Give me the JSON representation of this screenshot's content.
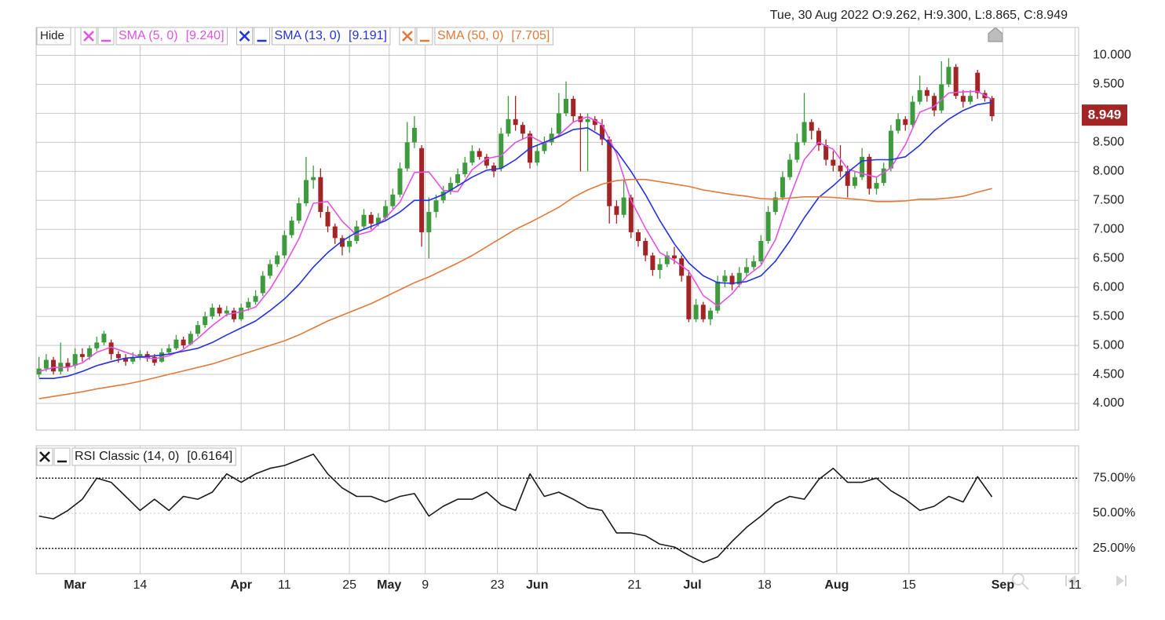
{
  "chart_data": [
    {
      "type": "candlestick",
      "title": "Tue, 30 Aug 2022  O:9.262, H:9.300, L:8.865, C:8.949",
      "hide_label": "Hide",
      "candle_colors": {
        "up": "#3d9b3d",
        "down": "#a32424"
      },
      "candles": [
        [
          4.5,
          4.8,
          4.45,
          4.6
        ],
        [
          4.6,
          4.85,
          4.55,
          4.75
        ],
        [
          4.75,
          4.8,
          4.5,
          4.55
        ],
        [
          4.55,
          5.05,
          4.5,
          4.7
        ],
        [
          4.7,
          4.78,
          4.55,
          4.62
        ],
        [
          4.65,
          4.95,
          4.6,
          4.85
        ],
        [
          4.85,
          4.95,
          4.72,
          4.8
        ],
        [
          4.8,
          5.0,
          4.75,
          4.95
        ],
        [
          4.95,
          5.15,
          4.9,
          5.05
        ],
        [
          5.05,
          5.25,
          5.0,
          5.2
        ],
        [
          5.05,
          5.1,
          4.75,
          4.85
        ],
        [
          4.85,
          4.9,
          4.7,
          4.78
        ],
        [
          4.78,
          4.85,
          4.65,
          4.72
        ],
        [
          4.72,
          4.88,
          4.68,
          4.8
        ],
        [
          4.8,
          4.92,
          4.75,
          4.85
        ],
        [
          4.85,
          4.9,
          4.72,
          4.78
        ],
        [
          4.8,
          4.85,
          4.65,
          4.7
        ],
        [
          4.72,
          4.95,
          4.7,
          4.88
        ],
        [
          4.88,
          5.02,
          4.85,
          4.95
        ],
        [
          4.95,
          5.18,
          4.92,
          5.1
        ],
        [
          5.1,
          5.15,
          4.95,
          5.0
        ],
        [
          5.02,
          5.25,
          5.0,
          5.2
        ],
        [
          5.2,
          5.42,
          5.15,
          5.35
        ],
        [
          5.35,
          5.58,
          5.3,
          5.5
        ],
        [
          5.5,
          5.72,
          5.45,
          5.65
        ],
        [
          5.65,
          5.7,
          5.5,
          5.55
        ],
        [
          5.55,
          5.68,
          5.5,
          5.6
        ],
        [
          5.6,
          5.65,
          5.4,
          5.45
        ],
        [
          5.45,
          5.72,
          5.42,
          5.65
        ],
        [
          5.65,
          5.82,
          5.6,
          5.75
        ],
        [
          5.75,
          5.95,
          5.7,
          5.85
        ],
        [
          5.9,
          6.28,
          5.85,
          6.2
        ],
        [
          6.2,
          6.48,
          6.15,
          6.4
        ],
        [
          6.4,
          6.62,
          6.35,
          6.55
        ],
        [
          6.55,
          6.98,
          6.5,
          6.9
        ],
        [
          6.9,
          7.22,
          6.85,
          7.15
        ],
        [
          7.15,
          7.55,
          7.1,
          7.45
        ],
        [
          7.45,
          8.25,
          7.4,
          7.85
        ],
        [
          7.85,
          8.1,
          7.7,
          7.9
        ],
        [
          7.9,
          8.05,
          7.2,
          7.3
        ],
        [
          7.3,
          7.4,
          6.95,
          7.05
        ],
        [
          7.05,
          7.1,
          6.75,
          6.85
        ],
        [
          6.85,
          6.9,
          6.55,
          6.7
        ],
        [
          6.7,
          6.9,
          6.6,
          6.8
        ],
        [
          6.8,
          7.15,
          6.75,
          7.05
        ],
        [
          7.05,
          7.35,
          7.0,
          7.25
        ],
        [
          7.25,
          7.3,
          7.0,
          7.1
        ],
        [
          7.1,
          7.28,
          7.05,
          7.2
        ],
        [
          7.2,
          7.5,
          7.15,
          7.4
        ],
        [
          7.4,
          7.7,
          7.35,
          7.6
        ],
        [
          7.6,
          8.15,
          7.55,
          8.05
        ],
        [
          8.05,
          8.85,
          8.0,
          8.5
        ],
        [
          8.5,
          8.95,
          8.4,
          8.75
        ],
        [
          8.4,
          8.45,
          6.7,
          6.95
        ],
        [
          6.95,
          7.55,
          6.5,
          7.3
        ],
        [
          7.3,
          7.6,
          7.2,
          7.5
        ],
        [
          7.5,
          7.75,
          7.45,
          7.65
        ],
        [
          7.65,
          7.9,
          7.6,
          7.8
        ],
        [
          7.8,
          8.05,
          7.75,
          7.95
        ],
        [
          7.95,
          8.25,
          7.9,
          8.15
        ],
        [
          8.15,
          8.45,
          8.1,
          8.35
        ],
        [
          8.35,
          8.4,
          8.2,
          8.25
        ],
        [
          8.25,
          8.3,
          8.05,
          8.1
        ],
        [
          8.1,
          8.15,
          7.9,
          8.0
        ],
        [
          8.05,
          8.75,
          8.0,
          8.65
        ],
        [
          8.65,
          9.3,
          8.6,
          8.9
        ],
        [
          8.9,
          9.3,
          8.7,
          8.8
        ],
        [
          8.8,
          8.85,
          8.55,
          8.65
        ],
        [
          8.65,
          8.7,
          8.05,
          8.15
        ],
        [
          8.15,
          8.45,
          8.1,
          8.35
        ],
        [
          8.35,
          8.6,
          8.3,
          8.5
        ],
        [
          8.5,
          8.75,
          8.45,
          8.65
        ],
        [
          8.65,
          9.35,
          8.6,
          9.0
        ],
        [
          9.0,
          9.55,
          8.95,
          9.25
        ],
        [
          9.25,
          9.3,
          8.85,
          8.95
        ],
        [
          8.95,
          9.0,
          8.0,
          8.85
        ],
        [
          8.85,
          9.0,
          8.0,
          8.9
        ],
        [
          8.9,
          8.95,
          8.7,
          8.8
        ],
        [
          8.8,
          8.9,
          8.45,
          8.55
        ],
        [
          8.55,
          8.6,
          7.1,
          7.4
        ],
        [
          7.4,
          7.5,
          7.1,
          7.25
        ],
        [
          7.25,
          7.85,
          7.2,
          7.55
        ],
        [
          7.55,
          7.6,
          6.85,
          6.95
        ],
        [
          6.95,
          7.0,
          6.7,
          6.8
        ],
        [
          6.8,
          6.85,
          6.45,
          6.55
        ],
        [
          6.55,
          6.6,
          6.2,
          6.3
        ],
        [
          6.3,
          6.5,
          6.15,
          6.4
        ],
        [
          6.4,
          6.62,
          6.35,
          6.55
        ],
        [
          6.55,
          6.7,
          6.4,
          6.5
        ],
        [
          6.5,
          6.55,
          6.1,
          6.2
        ],
        [
          6.2,
          6.3,
          5.4,
          5.45
        ],
        [
          5.45,
          5.8,
          5.4,
          5.7
        ],
        [
          5.7,
          5.75,
          5.4,
          5.45
        ],
        [
          5.45,
          5.65,
          5.35,
          5.6
        ],
        [
          5.6,
          6.2,
          5.55,
          6.1
        ],
        [
          6.1,
          6.3,
          6.0,
          6.2
        ],
        [
          6.2,
          6.25,
          5.95,
          6.05
        ],
        [
          6.05,
          6.35,
          6.0,
          6.25
        ],
        [
          6.25,
          6.5,
          6.2,
          6.35
        ],
        [
          6.35,
          6.55,
          6.3,
          6.45
        ],
        [
          6.45,
          6.9,
          6.4,
          6.8
        ],
        [
          6.8,
          7.4,
          6.75,
          7.3
        ],
        [
          7.3,
          7.65,
          7.25,
          7.55
        ],
        [
          7.55,
          8.0,
          7.5,
          7.9
        ],
        [
          7.9,
          8.3,
          7.85,
          8.2
        ],
        [
          8.2,
          8.65,
          8.15,
          8.5
        ],
        [
          8.5,
          9.35,
          8.45,
          8.85
        ],
        [
          8.85,
          8.9,
          8.55,
          8.7
        ],
        [
          8.7,
          8.75,
          8.35,
          8.45
        ],
        [
          8.45,
          8.55,
          8.1,
          8.2
        ],
        [
          8.2,
          8.35,
          8.0,
          8.1
        ],
        [
          8.1,
          8.45,
          7.9,
          8.0
        ],
        [
          8.0,
          8.1,
          7.55,
          7.75
        ],
        [
          7.75,
          8.0,
          7.7,
          7.9
        ],
        [
          7.9,
          8.4,
          7.85,
          8.25
        ],
        [
          8.25,
          8.3,
          7.6,
          7.7
        ],
        [
          7.7,
          7.9,
          7.6,
          7.8
        ],
        [
          7.8,
          8.15,
          7.75,
          8.05
        ],
        [
          8.05,
          8.8,
          8.0,
          8.7
        ],
        [
          8.7,
          9.0,
          8.65,
          8.9
        ],
        [
          8.9,
          8.95,
          8.7,
          8.8
        ],
        [
          8.8,
          9.3,
          8.75,
          9.2
        ],
        [
          9.2,
          9.65,
          9.15,
          9.4
        ],
        [
          9.4,
          9.45,
          9.2,
          9.3
        ],
        [
          9.3,
          9.35,
          8.95,
          9.05
        ],
        [
          9.05,
          9.9,
          9.0,
          9.5
        ],
        [
          9.5,
          9.95,
          9.45,
          9.8
        ],
        [
          9.8,
          9.85,
          9.25,
          9.3
        ],
        [
          9.3,
          9.4,
          9.1,
          9.2
        ],
        [
          9.2,
          9.4,
          9.15,
          9.3
        ],
        [
          9.7,
          9.75,
          9.25,
          9.35
        ],
        [
          9.35,
          9.4,
          9.2,
          9.26
        ],
        [
          9.262,
          9.3,
          8.865,
          8.949
        ]
      ],
      "line_x": [
        0,
        2,
        4,
        6,
        8,
        10,
        12,
        14,
        16,
        18,
        20,
        22,
        24,
        26,
        28,
        30,
        32,
        34,
        36,
        38,
        40,
        42,
        44,
        46,
        48,
        50,
        52,
        54,
        56,
        58,
        60,
        62,
        64,
        66,
        68,
        70,
        72,
        74,
        76,
        78,
        80,
        82,
        84,
        86,
        88,
        90,
        92,
        94,
        96,
        98,
        100,
        102,
        104,
        106,
        108,
        110,
        112,
        114,
        116,
        118,
        120,
        122,
        124,
        126,
        128,
        130,
        132
      ],
      "series": [
        {
          "name": "SMA (5, 0)",
          "legend_value": "[9.240]",
          "color": "#e353e3",
          "values": [
            4.55,
            4.62,
            4.62,
            4.7,
            4.88,
            4.97,
            4.88,
            4.8,
            4.77,
            4.82,
            4.93,
            5.12,
            5.34,
            5.53,
            5.58,
            5.66,
            5.97,
            6.38,
            6.84,
            7.45,
            7.48,
            7.14,
            6.9,
            6.97,
            7.2,
            7.47,
            7.98,
            7.99,
            7.67,
            7.65,
            8.03,
            8.22,
            8.27,
            8.5,
            8.61,
            8.48,
            8.62,
            8.85,
            8.94,
            8.81,
            8.3,
            7.5,
            7.02,
            6.6,
            6.46,
            6.28,
            5.86,
            5.68,
            5.89,
            6.19,
            6.38,
            6.82,
            7.55,
            8.2,
            8.5,
            8.38,
            8.04,
            7.96,
            7.9,
            8.06,
            8.46,
            9.02,
            9.12,
            9.35,
            9.37,
            9.38,
            9.24
          ]
        },
        {
          "name": "SMA (13, 0)",
          "legend_value": "[9.191]",
          "color": "#2332e0",
          "values": [
            4.43,
            4.43,
            4.47,
            4.55,
            4.65,
            4.72,
            4.78,
            4.8,
            4.82,
            4.85,
            4.9,
            4.95,
            5.05,
            5.18,
            5.3,
            5.42,
            5.6,
            5.8,
            6.05,
            6.35,
            6.6,
            6.8,
            6.95,
            7.05,
            7.15,
            7.3,
            7.5,
            7.5,
            7.6,
            7.75,
            7.9,
            8.02,
            8.05,
            8.2,
            8.4,
            8.5,
            8.6,
            8.72,
            8.75,
            8.6,
            8.35,
            8.0,
            7.6,
            7.15,
            6.75,
            6.42,
            6.2,
            6.08,
            6.07,
            6.1,
            6.2,
            6.45,
            6.8,
            7.2,
            7.55,
            7.75,
            7.98,
            8.18,
            8.2,
            8.2,
            8.25,
            8.45,
            8.7,
            8.9,
            9.05,
            9.15,
            9.191
          ]
        },
        {
          "name": "SMA (50, 0)",
          "legend_value": "[7.705]",
          "color": "#e2793a",
          "values": [
            4.08,
            4.12,
            4.16,
            4.2,
            4.25,
            4.29,
            4.33,
            4.38,
            4.44,
            4.5,
            4.56,
            4.62,
            4.68,
            4.76,
            4.84,
            4.92,
            5.0,
            5.08,
            5.18,
            5.3,
            5.42,
            5.52,
            5.62,
            5.72,
            5.84,
            5.96,
            6.08,
            6.18,
            6.3,
            6.42,
            6.55,
            6.7,
            6.85,
            7.0,
            7.12,
            7.25,
            7.38,
            7.55,
            7.68,
            7.78,
            7.84,
            7.86,
            7.86,
            7.82,
            7.78,
            7.74,
            7.68,
            7.64,
            7.6,
            7.57,
            7.53,
            7.52,
            7.54,
            7.56,
            7.56,
            7.55,
            7.53,
            7.51,
            7.48,
            7.48,
            7.49,
            7.52,
            7.52,
            7.54,
            7.57,
            7.64,
            7.705
          ]
        }
      ],
      "xlim": [
        -0.4,
        144
      ],
      "xticks": [
        {
          "value": 5,
          "label": "Mar"
        },
        {
          "value": 14,
          "label": "14"
        },
        {
          "value": 28,
          "label": "Apr"
        },
        {
          "value": 34,
          "label": "11"
        },
        {
          "value": 43,
          "label": "25"
        },
        {
          "value": 48.5,
          "label": "May"
        },
        {
          "value": 53.5,
          "label": "9"
        },
        {
          "value": 63.5,
          "label": "23"
        },
        {
          "value": 69,
          "label": "Jun"
        },
        {
          "value": 82.5,
          "label": "21"
        },
        {
          "value": 90.5,
          "label": "Jul"
        },
        {
          "value": 100.5,
          "label": "18"
        },
        {
          "value": 110.5,
          "label": "Aug"
        },
        {
          "value": 120.5,
          "label": "15"
        },
        {
          "value": 133.5,
          "label": "Sep"
        },
        {
          "value": 143.5,
          "label": "11"
        }
      ],
      "ylim": [
        3.54,
        10.48
      ],
      "yticks": [
        {
          "value": 4,
          "label": "4.000"
        },
        {
          "value": 4.5,
          "label": "4.500"
        },
        {
          "value": 5,
          "label": "5.000"
        },
        {
          "value": 5.5,
          "label": "5.500"
        },
        {
          "value": 6,
          "label": "6.000"
        },
        {
          "value": 6.5,
          "label": "6.500"
        },
        {
          "value": 7,
          "label": "7.000"
        },
        {
          "value": 7.5,
          "label": "7.500"
        },
        {
          "value": 8,
          "label": "8.000"
        },
        {
          "value": 8.5,
          "label": "8.500"
        },
        {
          "value": 9,
          "label": "9.000"
        },
        {
          "value": 9.5,
          "label": "9.500"
        },
        {
          "value": 10,
          "label": "10.000"
        }
      ],
      "grid": true
    },
    {
      "type": "line",
      "series": [
        {
          "name": "RSI Classic (14, 0)",
          "legend_value": "[0.6164]",
          "color": "#1a1a1a",
          "values": [
            48,
            46,
            52,
            60,
            75,
            72,
            62,
            52,
            60,
            52,
            62,
            60,
            65,
            78,
            72,
            78,
            82,
            84,
            88,
            92,
            78,
            68,
            62,
            62,
            58,
            62,
            64,
            48,
            55,
            60,
            60,
            65,
            56,
            52,
            78,
            62,
            65,
            60,
            54,
            52,
            36,
            36,
            34,
            28,
            26,
            20,
            15,
            19,
            30,
            40,
            48,
            57,
            62,
            60,
            74,
            82,
            72,
            72,
            75,
            66,
            60,
            52,
            55,
            62,
            58,
            76,
            61.64
          ]
        }
      ],
      "ylim": [
        7,
        98
      ],
      "yticks": [
        {
          "value": 25,
          "label": "25.00%"
        },
        {
          "value": 50,
          "label": "50.00%"
        },
        {
          "value": 75,
          "label": "75.00%"
        }
      ],
      "levels": [
        25,
        75
      ],
      "grid": true
    }
  ]
}
